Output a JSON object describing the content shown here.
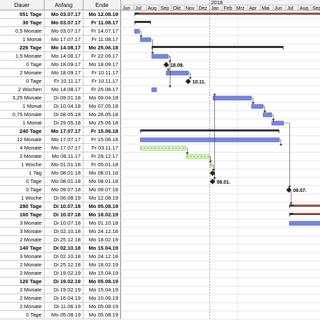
{
  "columns": {
    "duration": "Dauer",
    "start": "Anfang",
    "end": "Ende"
  },
  "timeline": {
    "year_label": "2018",
    "months": [
      "Jun",
      "Jul",
      "Aug",
      "Sep",
      "Okt",
      "Nov",
      "Dez",
      "Jan",
      "Feb",
      "Mrz",
      "Apr",
      "Mai",
      "Jun",
      "Jul",
      "Aug",
      "Sep"
    ]
  },
  "milestone_labels": {
    "m1": "18.09.",
    "m2": "10.11.",
    "m3": "08.01.",
    "m4": "09.07."
  },
  "rows": [
    {
      "duration": "551 Tage",
      "start": "Mo 03.07.17",
      "end": "Mo 12.08.19",
      "summary": true
    },
    {
      "duration": "30 Tage",
      "start": "Mo 03.07.17",
      "end": "Fr 11.08.17",
      "summary": true
    },
    {
      "duration": "0,5 Monate",
      "start": "Mo 03.07.17",
      "end": "Fr 14.07.17",
      "summary": false
    },
    {
      "duration": "1 Monat",
      "start": "Mo 17.07.17",
      "end": "Fr 11.08.17",
      "summary": false
    },
    {
      "duration": "226 Tage",
      "start": "Mo 14.08.17",
      "end": "Mo 25.06.18",
      "summary": true
    },
    {
      "duration": "1,5 Monate",
      "start": "Mo 14.08.17",
      "end": "Fr 22.09.17",
      "summary": false
    },
    {
      "duration": "0 Tage",
      "start": "Mo 18.09.17",
      "end": "Mo 18.09.17",
      "summary": false
    },
    {
      "duration": "2 Monate",
      "start": "Mo 18.09.17",
      "end": "Fr 10.11.17",
      "summary": false
    },
    {
      "duration": "0 Tage",
      "start": "Fr 10.11.17",
      "end": "Fr 10.11.17",
      "summary": false
    },
    {
      "duration": "2 Wochen",
      "start": "Mo 14.08.17",
      "end": "Fr 25.08.17",
      "summary": false
    },
    {
      "duration": "3,25 Monate",
      "start": "Di 09.01.18",
      "end": "Mo 09.04.18",
      "summary": false
    },
    {
      "duration": "1 Monat",
      "start": "Di 10.04.18",
      "end": "Mo 07.05.18",
      "summary": false
    },
    {
      "duration": "0,75 Monate",
      "start": "Di 08.05.18",
      "end": "Mo 28.05.18",
      "summary": false
    },
    {
      "duration": "1 Monat",
      "start": "Di 29.05.18",
      "end": "Mo 25.06.18",
      "summary": false
    },
    {
      "duration": "240 Tage",
      "start": "Mo 17.07.17",
      "end": "Fr 15.06.18",
      "summary": true
    },
    {
      "duration": "12 Monate",
      "start": "Mo 17.07.17",
      "end": "Fr 15.06.18",
      "summary": false
    },
    {
      "duration": "4 Monate",
      "start": "Mo 17.07.17",
      "end": "Fr 03.11.17",
      "summary": false
    },
    {
      "duration": "2 Monate",
      "start": "Mo 06.11.17",
      "end": "Fr 29.12.17",
      "summary": false
    },
    {
      "duration": "1 Woche",
      "start": "Mo 01.01.18",
      "end": "Fr 05.01.18",
      "summary": false
    },
    {
      "duration": "1 Tag",
      "start": "Mo 08.01.18",
      "end": "Mo 08.01.18",
      "summary": false
    },
    {
      "duration": "0 Tage",
      "start": "Mo 08.01.18",
      "end": "Mo 08.01.18",
      "summary": false
    },
    {
      "duration": "0 Tage",
      "start": "Mo 09.07.18",
      "end": "Mo 09.07.18",
      "summary": false
    },
    {
      "duration": "1 Woche",
      "start": "Di 06.08.19",
      "end": "Mo 12.08.19",
      "summary": false
    },
    {
      "duration": "280 Tage",
      "start": "Di 10.07.18",
      "end": "Mo 05.08.19",
      "summary": true
    },
    {
      "duration": "160 Tage",
      "start": "Di 10.07.18",
      "end": "Mo 18.02.19",
      "summary": true
    },
    {
      "duration": "3 Monate",
      "start": "Di 10.07.18",
      "end": "Mo 01.10.18",
      "summary": false
    },
    {
      "duration": "3 Monate",
      "start": "Di 02.10.18",
      "end": "Mo 24.12.18",
      "summary": false
    },
    {
      "duration": "2 Monate",
      "start": "Di 25.12.18",
      "end": "Mo 18.02.19",
      "summary": false
    },
    {
      "duration": "140 Tage",
      "start": "Di 02.10.18",
      "end": "Mo 15.04.19",
      "summary": true
    },
    {
      "duration": "3 Monate",
      "start": "Di 02.10.18",
      "end": "Mo 24.12.18",
      "summary": false
    },
    {
      "duration": "2 Monate",
      "start": "Di 25.12.18",
      "end": "Mo 18.02.19",
      "summary": false
    },
    {
      "duration": "2 Monate",
      "start": "Di 19.02.19",
      "end": "Mo 15.04.19",
      "summary": false
    },
    {
      "duration": "120 Tage",
      "start": "Di 19.02.19",
      "end": "Mo 05.08.19",
      "summary": true
    },
    {
      "duration": "2 Monate",
      "start": "Di 19.02.19",
      "end": "Mo 15.04.19",
      "summary": false
    },
    {
      "duration": "2 Monate",
      "start": "Di 16.04.19",
      "end": "Mo 10.06.19",
      "summary": false
    },
    {
      "duration": "2 Monate",
      "start": "Di 11.06.19",
      "end": "Mo 05.08.19",
      "summary": false
    },
    {
      "duration": "0 Tage",
      "start": "Mo 05.08.19",
      "end": "Mo 05.08.19",
      "summary": false
    }
  ],
  "colors": {
    "task": "#7b86d8",
    "summary": "#303030",
    "milestone": "#202020",
    "critical": "#e04040",
    "progress": "#6fbf3a",
    "grid": "#c8c8c8"
  }
}
